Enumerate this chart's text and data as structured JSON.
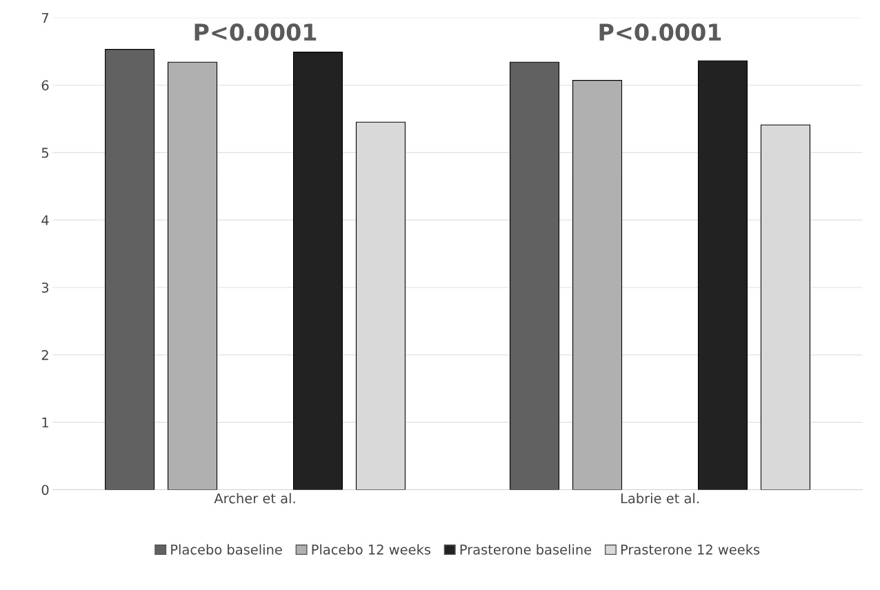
{
  "chart_data": {
    "type": "bar",
    "categories": [
      "Archer et al.",
      "Labrie et al."
    ],
    "series": [
      {
        "name": "Placebo baseline",
        "color": "#616161",
        "values": [
          6.53,
          6.34
        ]
      },
      {
        "name": "Placebo 12 weeks",
        "color": "#b0b0b0",
        "values": [
          6.34,
          6.07
        ]
      },
      {
        "values": [
          null,
          null
        ]
      },
      {
        "name": "Prasterone baseline",
        "color": "#222222",
        "values": [
          6.49,
          6.36
        ]
      },
      {
        "name": "Prasterone 12 weeks",
        "color": "#d9d9d9",
        "values": [
          5.45,
          5.41
        ]
      }
    ],
    "ylim": [
      0,
      7
    ],
    "yticks": [
      0,
      1,
      2,
      3,
      4,
      5,
      6,
      7
    ],
    "grid": "y",
    "legend": "bottom",
    "annotations": [
      "P<0.0001",
      "P<0.0001"
    ]
  }
}
